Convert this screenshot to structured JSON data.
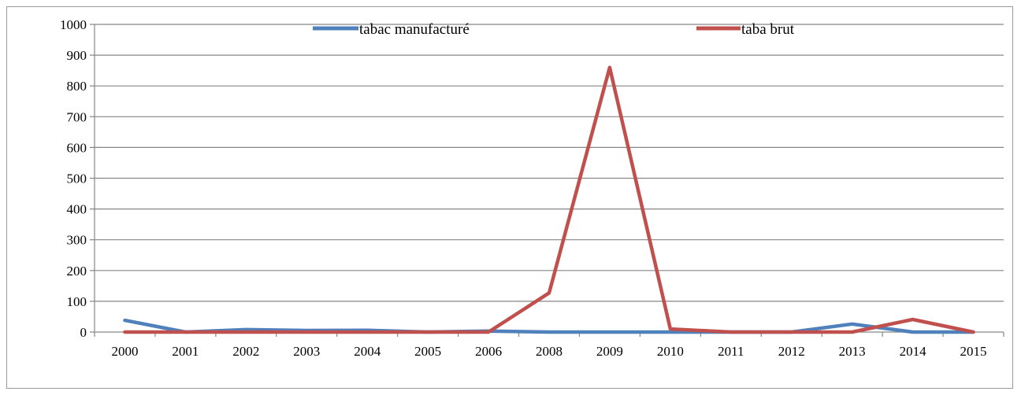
{
  "chart_data": {
    "type": "line",
    "title": "",
    "xlabel": "",
    "ylabel": "",
    "categories": [
      "2000",
      "2001",
      "2002",
      "2003",
      "2004",
      "2005",
      "2006",
      "2008",
      "2009",
      "2010",
      "2011",
      "2012",
      "2013",
      "2014",
      "2015"
    ],
    "ylim": [
      0,
      1000
    ],
    "yticks": [
      "0",
      "100",
      "200",
      "300",
      "400",
      "500",
      "600",
      "700",
      "800",
      "900",
      "1000"
    ],
    "grid": true,
    "legend_position": "top",
    "series": [
      {
        "name": "tabac manufacturé",
        "color": "#4f81bd",
        "values": [
          38,
          0,
          8,
          5,
          6,
          0,
          3,
          0,
          0,
          0,
          0,
          0,
          26,
          0,
          0
        ]
      },
      {
        "name": "taba brut",
        "color": "#c0504d",
        "values": [
          0,
          0,
          0,
          0,
          0,
          0,
          0,
          127,
          860,
          10,
          0,
          0,
          0,
          41,
          0
        ]
      }
    ]
  }
}
